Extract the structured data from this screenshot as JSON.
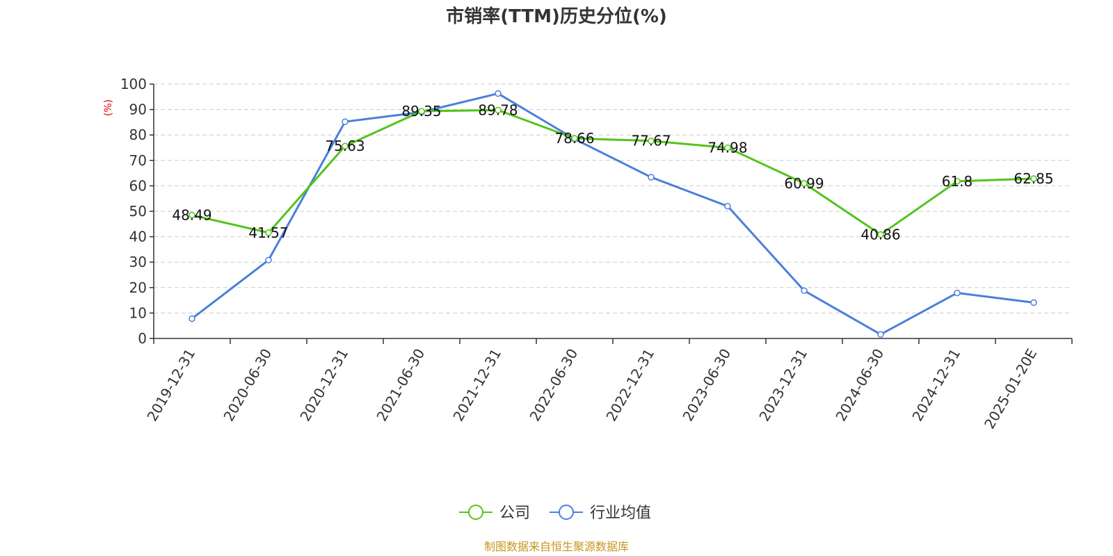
{
  "chart_data": {
    "type": "line",
    "title": "市销率(TTM)历史分位(%)",
    "ylabel": "(%)",
    "ylim": [
      0,
      100
    ],
    "yticks": [
      0,
      10,
      20,
      30,
      40,
      50,
      60,
      70,
      80,
      90,
      100
    ],
    "categories": [
      "2019-12-31",
      "2020-06-30",
      "2020-12-31",
      "2021-06-30",
      "2021-12-31",
      "2022-06-30",
      "2022-12-31",
      "2023-06-30",
      "2023-12-31",
      "2024-06-30",
      "2024-12-31",
      "2025-01-20E"
    ],
    "series": [
      {
        "name": "公司",
        "color": "#52c41a",
        "show_labels": true,
        "values": [
          48.49,
          41.57,
          75.63,
          89.35,
          89.78,
          78.66,
          77.67,
          74.98,
          60.99,
          40.86,
          61.8,
          62.85
        ],
        "labels": [
          "48.49",
          "41.57",
          "75.63",
          "89.35",
          "89.78",
          "78.66",
          "77.67",
          "74.98",
          "60.99",
          "40.86",
          "61.8",
          "62.85"
        ]
      },
      {
        "name": "行业均值",
        "color": "#4a7fdc",
        "show_labels": false,
        "values": [
          7.8,
          30.8,
          85.2,
          89.0,
          96.3,
          78.4,
          63.4,
          52.0,
          18.8,
          1.6,
          17.9,
          14.1
        ]
      }
    ],
    "grid": true,
    "legend_position": "bottom-center"
  },
  "source_note": "制图数据来自恒生聚源数据库",
  "colors": {
    "axis": "#333333",
    "grid": "#cccccc",
    "ylabel": "#e60000",
    "source": "#c8961e"
  }
}
